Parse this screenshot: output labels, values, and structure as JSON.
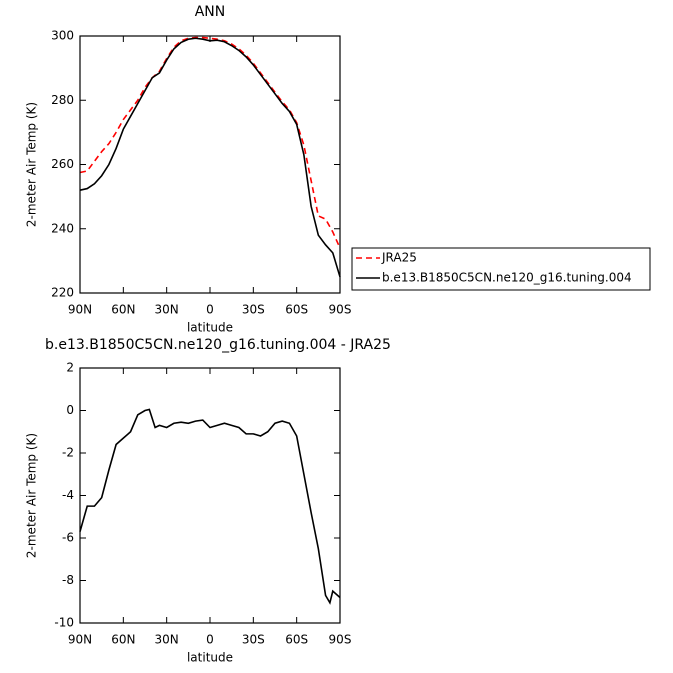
{
  "chart_data": [
    {
      "type": "line",
      "title": "ANN",
      "x_label": "latitude",
      "y_label": "2-meter Air Temp (K)",
      "x": [
        90,
        85,
        80,
        75,
        70,
        65,
        60,
        55,
        50,
        45,
        40,
        35,
        30,
        25,
        20,
        15,
        10,
        5,
        0,
        -5,
        -10,
        -15,
        -20,
        -25,
        -30,
        -35,
        -40,
        -45,
        -50,
        -55,
        -60,
        -65,
        -70,
        -75,
        -80,
        -85,
        -90
      ],
      "series": [
        {
          "name": "JRA25",
          "color": "#ff0000",
          "dashed": true,
          "values": [
            257.5,
            258,
            261,
            264,
            266.5,
            270,
            274,
            277,
            280,
            284,
            287,
            289,
            293,
            296.5,
            298.5,
            299.3,
            299.5,
            299.5,
            299.3,
            299,
            298.5,
            297.5,
            296,
            294,
            291.5,
            288.5,
            285.5,
            282.5,
            279.5,
            277,
            273,
            266,
            255,
            244,
            243,
            239,
            234
          ]
        },
        {
          "name": "b.e13.B1850C5CN.ne120_g16.tuning.004",
          "color": "#000000",
          "dashed": false,
          "values": [
            252,
            252.5,
            254,
            256.5,
            260,
            265,
            271,
            275,
            279,
            283,
            287,
            288.5,
            292.5,
            296,
            298,
            299,
            299.3,
            299,
            298.5,
            298.7,
            298.2,
            297,
            295.5,
            293.5,
            291,
            288,
            285,
            282,
            279,
            276.5,
            272.5,
            263,
            247,
            238,
            235,
            232.5,
            225
          ]
        }
      ],
      "xlim": [
        90,
        -90
      ],
      "xticks": [
        {
          "value": 90,
          "label": "90N"
        },
        {
          "value": 60,
          "label": "60N"
        },
        {
          "value": 30,
          "label": "30N"
        },
        0,
        {
          "value": -30,
          "label": "30S"
        },
        {
          "value": -60,
          "label": "60S"
        },
        {
          "value": -90,
          "label": "90S"
        }
      ],
      "ylim": [
        220,
        300
      ],
      "yticks": [
        220,
        240,
        260,
        280,
        300
      ]
    },
    {
      "type": "line",
      "title": "b.e13.B1850C5CN.ne120_g16.tuning.004 - JRA25",
      "x_label": "latitude",
      "y_label": "2-meter Air Temp (K)",
      "x": [
        90,
        85,
        80,
        75,
        70,
        65,
        60,
        55,
        50,
        45,
        42,
        38,
        35,
        30,
        25,
        20,
        15,
        10,
        5,
        0,
        -5,
        -10,
        -15,
        -20,
        -25,
        -30,
        -35,
        -40,
        -45,
        -50,
        -55,
        -60,
        -65,
        -70,
        -75,
        -80,
        -83,
        -85,
        -90
      ],
      "series": [
        {
          "color": "#000000",
          "dashed": false,
          "values": [
            -5.7,
            -4.5,
            -4.5,
            -4.1,
            -2.8,
            -1.6,
            -1.3,
            -1.0,
            -0.2,
            0.0,
            0.05,
            -0.8,
            -0.7,
            -0.8,
            -0.6,
            -0.55,
            -0.6,
            -0.5,
            -0.45,
            -0.8,
            -0.7,
            -0.6,
            -0.7,
            -0.8,
            -1.1,
            -1.1,
            -1.2,
            -1.0,
            -0.6,
            -0.5,
            -0.6,
            -1.2,
            -3.0,
            -4.8,
            -6.5,
            -8.7,
            -9.05,
            -8.5,
            -8.8
          ]
        }
      ],
      "xlim": [
        90,
        -90
      ],
      "xticks": [
        {
          "value": 90,
          "label": "90N"
        },
        {
          "value": 60,
          "label": "60N"
        },
        {
          "value": 30,
          "label": "30N"
        },
        0,
        {
          "value": -30,
          "label": "30S"
        },
        {
          "value": -60,
          "label": "60S"
        },
        {
          "value": -90,
          "label": "90S"
        }
      ],
      "ylim": [
        -10,
        2
      ],
      "yticks": [
        -10,
        -8,
        -6,
        -4,
        -2,
        0,
        2
      ]
    }
  ]
}
